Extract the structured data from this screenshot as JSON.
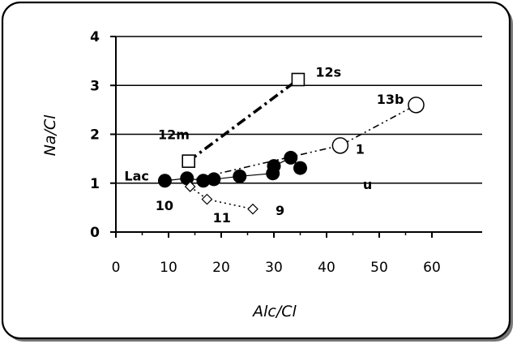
{
  "chart_data": {
    "type": "scatter",
    "xlabel": "Alc/Cl",
    "ylabel": "Na/Cl",
    "xlim": [
      0,
      60
    ],
    "ylim": [
      0,
      4
    ],
    "x_ticks": [
      "0",
      "10",
      "20",
      "30",
      "40",
      "50",
      "60"
    ],
    "y_ticks": [
      "0",
      "1",
      "2",
      "3",
      "4"
    ],
    "grid": "horizontal",
    "series": [
      {
        "marker": "filled-circle",
        "line": "solid",
        "points": [
          {
            "x": 9.3,
            "y": 1.05
          },
          {
            "x": 13.5,
            "y": 1.1
          },
          {
            "x": 16.6,
            "y": 1.05
          },
          {
            "x": 18.6,
            "y": 1.08
          },
          {
            "x": 23.5,
            "y": 1.14
          },
          {
            "x": 29.8,
            "y": 1.2
          },
          {
            "x": 30.0,
            "y": 1.35
          },
          {
            "x": 33.2,
            "y": 1.52
          },
          {
            "x": 35.0,
            "y": 1.31
          }
        ]
      },
      {
        "marker": "open-circle",
        "line": "dash-dot-dot",
        "points": [
          {
            "x": 13.5,
            "y": 1.05
          },
          {
            "x": 42.6,
            "y": 1.77
          },
          {
            "x": 57.0,
            "y": 2.6
          }
        ],
        "marker_indices": [
          1,
          2
        ]
      },
      {
        "marker": "open-square",
        "line": "dash-dot-thick",
        "points": [
          {
            "x": 13.8,
            "y": 1.45
          },
          {
            "x": 34.6,
            "y": 3.12
          }
        ]
      },
      {
        "marker": "open-diamond",
        "line": "dotted",
        "points": [
          {
            "x": 14.1,
            "y": 0.93
          },
          {
            "x": 17.3,
            "y": 0.67
          },
          {
            "x": 26.0,
            "y": 0.47
          }
        ]
      }
    ],
    "annotations": [
      {
        "text": "12s",
        "x": 37.9,
        "y": 3.18
      },
      {
        "text": "13b",
        "x": 49.5,
        "y": 2.62
      },
      {
        "text": "12m",
        "x": 8.0,
        "y": 1.9
      },
      {
        "text": "1",
        "x": 45.5,
        "y": 1.6
      },
      {
        "text": "Lac",
        "x": 1.6,
        "y": 1.05
      },
      {
        "text": "u",
        "x": 46.9,
        "y": 0.88
      },
      {
        "text": "10",
        "x": 7.5,
        "y": 0.45
      },
      {
        "text": "11",
        "x": 18.4,
        "y": 0.2
      },
      {
        "text": "9",
        "x": 30.3,
        "y": 0.35
      }
    ]
  }
}
